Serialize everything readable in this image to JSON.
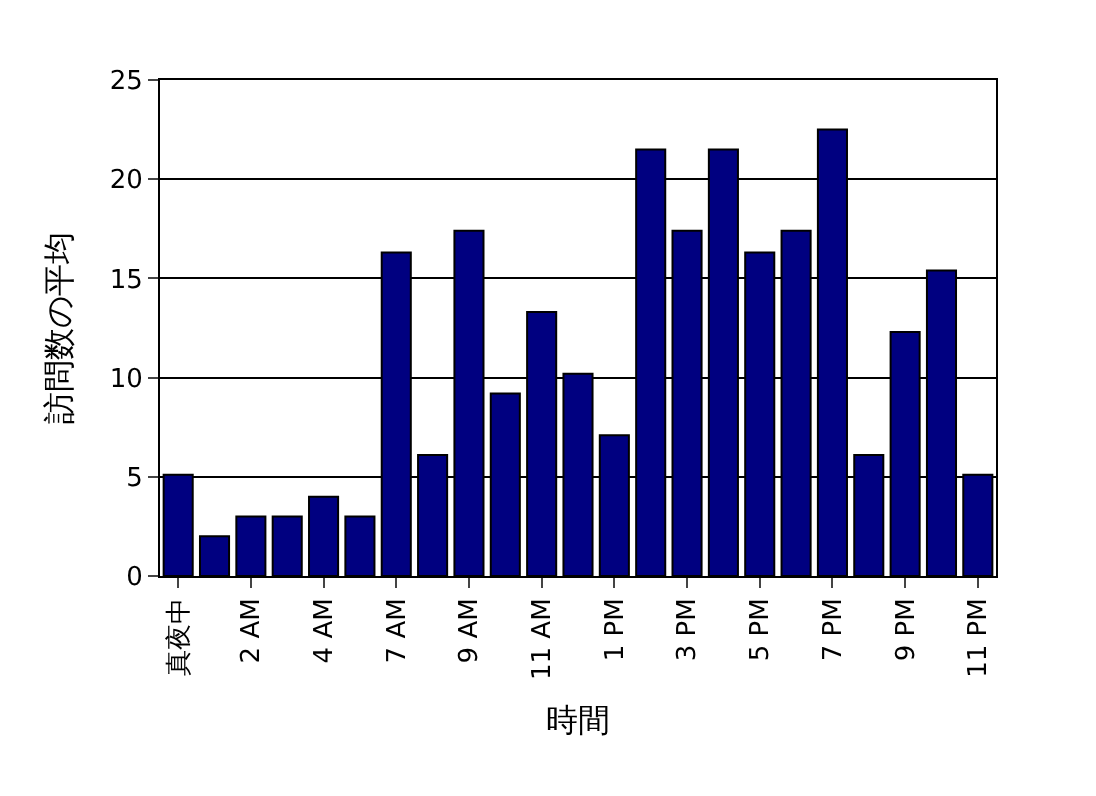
{
  "chart_data": {
    "type": "bar",
    "xlabel": "時間",
    "ylabel": "訪問数の平均",
    "categories": [
      "真夜中",
      null,
      "2 AM",
      null,
      "4 AM",
      null,
      "7 AM",
      null,
      "9 AM",
      null,
      "11 AM",
      null,
      "1 PM",
      null,
      "3 PM",
      null,
      "5 PM",
      null,
      "7 PM",
      null,
      "9 PM",
      null,
      "11 PM"
    ],
    "values": [
      5.1,
      2.0,
      3.0,
      3.0,
      4.0,
      3.0,
      16.3,
      6.1,
      17.4,
      9.2,
      13.3,
      10.2,
      7.1,
      21.5,
      17.4,
      21.5,
      16.3,
      17.4,
      22.5,
      6.1,
      12.3,
      15.4,
      5.1
    ],
    "color": "#000080",
    "ylim": [
      0,
      25
    ],
    "yticks": [
      0,
      5,
      10,
      15,
      20,
      25
    ],
    "grid": "y"
  }
}
